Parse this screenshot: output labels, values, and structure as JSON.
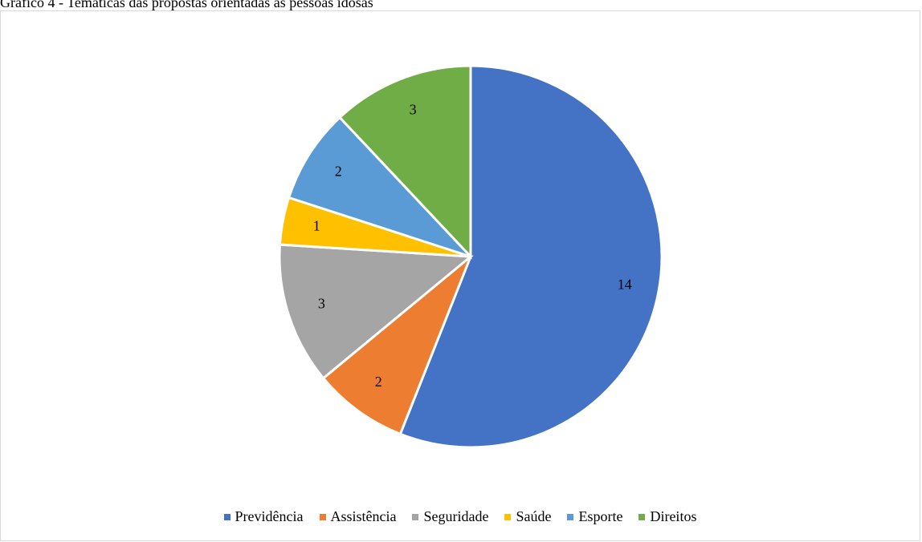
{
  "caption": "Gráfico 4 - Temáticas das propostas orientadas às pessoas idosas",
  "chart_data": {
    "type": "pie",
    "title": "",
    "categories": [
      "Previdência",
      "Assistência",
      "Seguridade",
      "Saúde",
      "Esporte",
      "Direitos"
    ],
    "values": [
      14,
      2,
      3,
      1,
      2,
      3
    ],
    "colors": [
      "#4472C4",
      "#ED7D31",
      "#A5A5A5",
      "#FFC000",
      "#5B9BD5",
      "#70AD47"
    ],
    "start_angle_deg": 0,
    "direction": "clockwise",
    "data_labels": true,
    "legend_position": "bottom"
  }
}
